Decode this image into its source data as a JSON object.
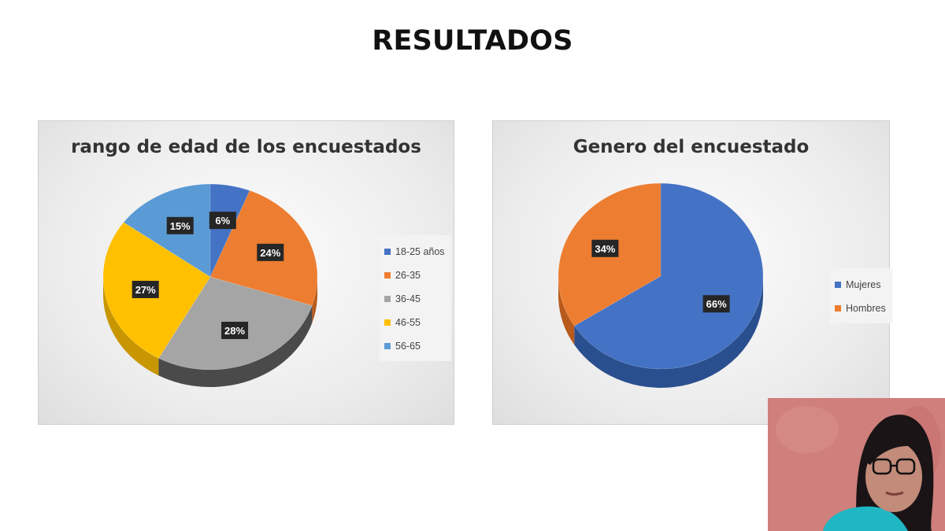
{
  "slide": {
    "title": "RESULTADOS"
  },
  "chart_data": [
    {
      "type": "pie",
      "title": "rango de edad de los encuestados",
      "categories": [
        "18-25 años",
        "26-35",
        "36-45",
        "46-55",
        "56-65"
      ],
      "values": [
        6,
        24,
        28,
        27,
        15
      ],
      "labels": [
        "6%",
        "24%",
        "28%",
        "27%",
        "15%"
      ],
      "colors": [
        "#4472C4",
        "#ED7D31",
        "#A5A5A5",
        "#FFC000",
        "#5B9BD5"
      ],
      "shadow_colors": [
        "#2f5597",
        "#b85a1c",
        "#4a4a4a",
        "#c79600",
        "#3f74a8"
      ],
      "legend_position": "right"
    },
    {
      "type": "pie",
      "title": "Genero del encuestado",
      "categories": [
        "Mujeres",
        "Hombres"
      ],
      "values": [
        66,
        34
      ],
      "labels": [
        "66%",
        "34%"
      ],
      "colors": [
        "#4472C4",
        "#ED7D31"
      ],
      "shadow_colors": [
        "#2a4f8f",
        "#b85a1c"
      ],
      "legend_position": "right"
    }
  ]
}
